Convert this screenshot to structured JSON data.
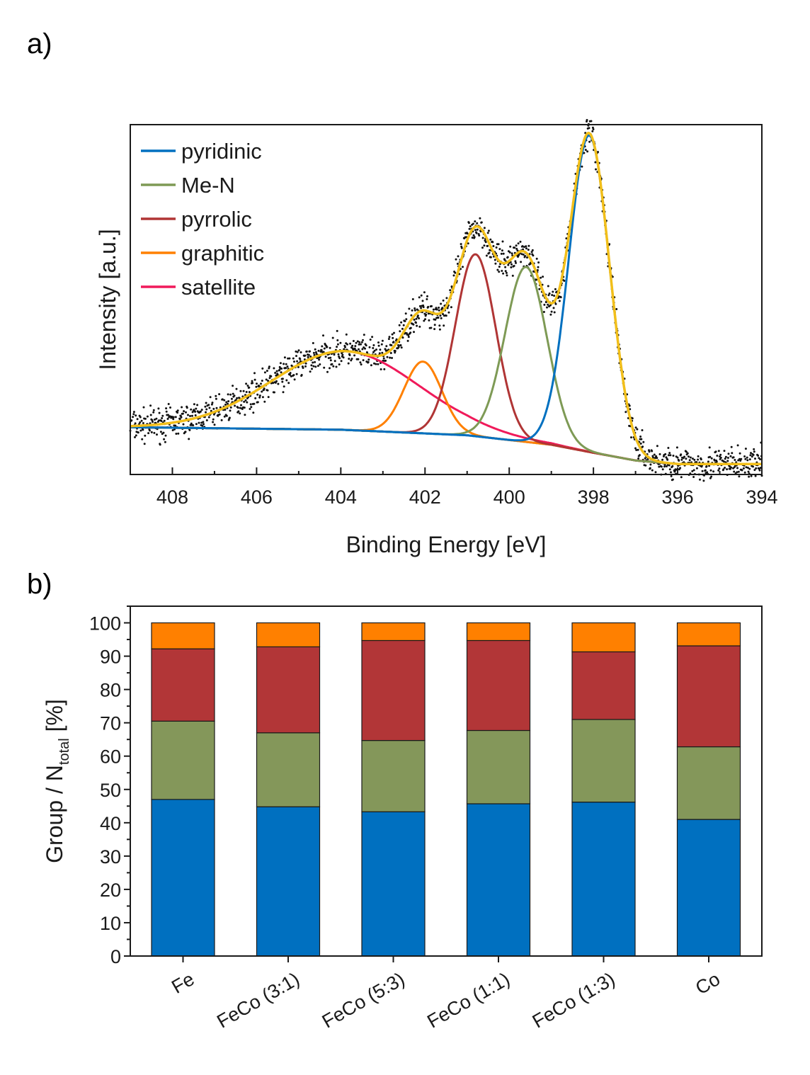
{
  "colors": {
    "pyridinic": "#0070c0",
    "me_n": "#7e9a55",
    "pyrrolic": "#b03535",
    "graphitic": "#ff8000",
    "satellite": "#f01a5a",
    "envelope": "#f2bf1a",
    "baseline": "#6a9ed8",
    "data_points": "#111111",
    "bar_pyridinic": "#0070c0",
    "bar_me_n": "#84975a",
    "bar_pyrrolic": "#b23637",
    "bar_graphitic": "#ff8000"
  },
  "chart_data": [
    {
      "id": "xps-n1s",
      "panel_label": "a)",
      "type": "line",
      "xlabel": "Binding Energy [eV]",
      "ylabel": "Intensity [a.u.]",
      "xlim": [
        409,
        394
      ],
      "x_reversed": true,
      "y_ticks_shown": false,
      "x_ticks": [
        408,
        406,
        404,
        402,
        400,
        398,
        396,
        394
      ],
      "ylim": [
        0,
        1.0
      ],
      "legend_position": "top-left",
      "legend": [
        "pyridinic",
        "Me-N",
        "pyrrolic",
        "graphitic",
        "satellite"
      ],
      "baseline": {
        "x": [
          409,
          404,
          401,
          399,
          398,
          397,
          396,
          394
        ],
        "y": [
          0.135,
          0.128,
          0.112,
          0.085,
          0.062,
          0.04,
          0.03,
          0.03
        ]
      },
      "components": [
        {
          "name": "pyridinic",
          "center": 398.1,
          "height": 0.905,
          "sigma": 0.48
        },
        {
          "name": "Me-N",
          "center": 399.6,
          "height": 0.5,
          "sigma": 0.5
        },
        {
          "name": "pyrrolic",
          "center": 400.8,
          "height": 0.52,
          "sigma": 0.48
        },
        {
          "name": "graphitic",
          "center": 402.05,
          "height": 0.205,
          "sigma": 0.45
        },
        {
          "name": "satellite",
          "center": 403.9,
          "height": 0.225,
          "sigma": 1.75
        }
      ],
      "envelope_peaks": [
        {
          "x": 398.1,
          "y": 0.955
        },
        {
          "x": 399.7,
          "y": 0.69
        },
        {
          "x": 400.7,
          "y": 0.67
        },
        {
          "x": 402.1,
          "y": 0.36
        },
        {
          "x": 403.9,
          "y": 0.255
        }
      ]
    },
    {
      "id": "n-composition",
      "panel_label": "b)",
      "type": "bar",
      "stacked": true,
      "xlabel": "",
      "ylabel_main": "Group / N",
      "ylabel_sub": "total",
      "ylabel_unit": " [%]",
      "ylim": [
        0,
        105
      ],
      "y_ticks": [
        0,
        10,
        20,
        30,
        40,
        50,
        60,
        70,
        80,
        90,
        100
      ],
      "categories": [
        "Fe",
        "FeCo (3:1)",
        "FeCo (5:3)",
        "FeCo (1:1)",
        "FeCo (1:3)",
        "Co"
      ],
      "series": [
        {
          "name": "pyridinic",
          "values": [
            47.0,
            44.8,
            43.3,
            45.7,
            46.2,
            41.0
          ]
        },
        {
          "name": "Me-N",
          "values": [
            23.5,
            22.2,
            21.4,
            22.0,
            24.8,
            21.8
          ]
        },
        {
          "name": "pyrrolic",
          "values": [
            21.7,
            25.8,
            30.0,
            27.0,
            20.3,
            30.3
          ]
        },
        {
          "name": "graphitic",
          "values": [
            7.8,
            7.2,
            5.3,
            5.3,
            8.7,
            6.9
          ]
        }
      ]
    }
  ]
}
